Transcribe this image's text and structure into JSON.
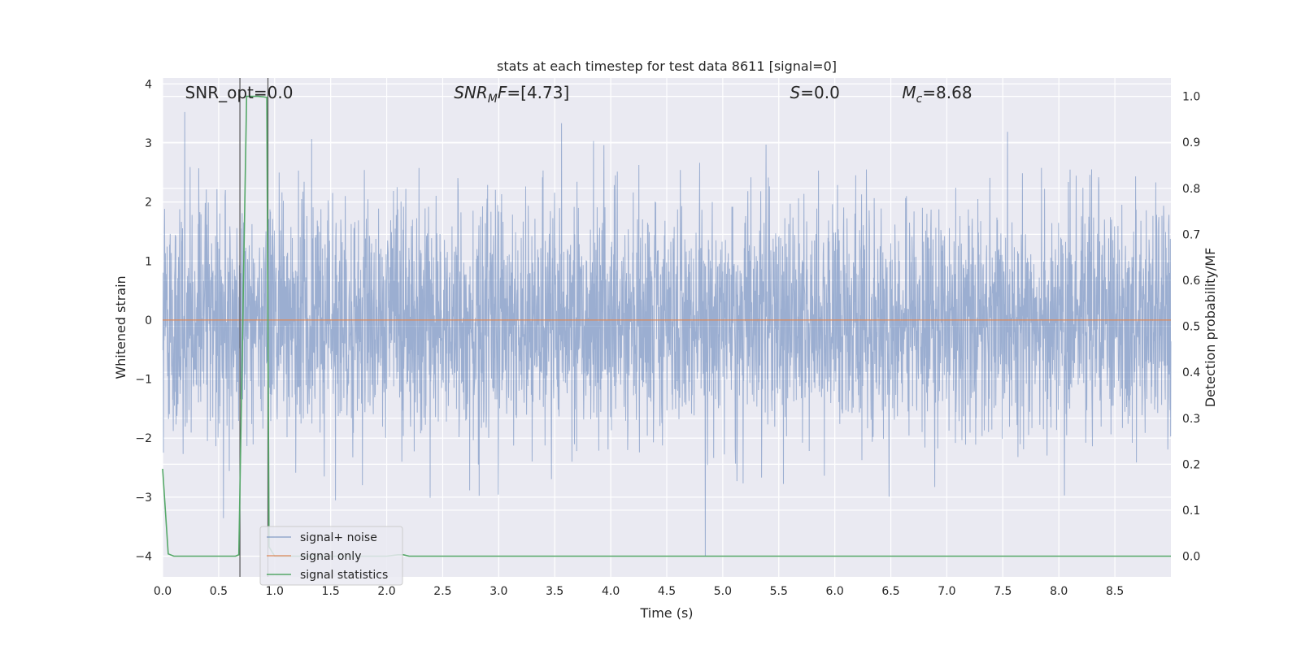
{
  "chart_data": {
    "type": "line",
    "title": "stats at each timestep for test data 8611 [signal=0]",
    "xlabel": "Time (s)",
    "ylabel_left": "Whitened strain",
    "ylabel_right": "Detection probability/MF",
    "xlim": [
      0.0,
      9.0
    ],
    "ylim_left": [
      -4.35,
      4.1
    ],
    "ylim_right": [
      -0.045,
      1.04
    ],
    "x_ticks": [
      0.0,
      0.5,
      1.0,
      1.5,
      2.0,
      2.5,
      3.0,
      3.5,
      4.0,
      4.5,
      5.0,
      5.5,
      6.0,
      6.5,
      7.0,
      7.5,
      8.0,
      8.5
    ],
    "x_tick_labels": [
      "0.0",
      "0.5",
      "1.0",
      "1.5",
      "2.0",
      "2.5",
      "3.0",
      "3.5",
      "4.0",
      "4.5",
      "5.0",
      "5.5",
      "6.0",
      "6.5",
      "7.0",
      "7.5",
      "8.0",
      "8.5"
    ],
    "y_left_ticks": [
      4,
      3,
      2,
      1,
      0,
      -1,
      -2,
      -3,
      -4
    ],
    "y_left_tick_labels": [
      "4",
      "3",
      "2",
      "1",
      "0",
      "−1",
      "−2",
      "−3",
      "−4"
    ],
    "y_right_ticks": [
      1.0,
      0.9,
      0.8,
      0.7,
      0.6,
      0.5,
      0.4,
      0.3,
      0.2,
      0.1,
      0.0
    ],
    "y_right_tick_labels": [
      "1.0",
      "0.9",
      "0.8",
      "0.7",
      "0.6",
      "0.5",
      "0.4",
      "0.3",
      "0.2",
      "0.1",
      "0.0"
    ],
    "grid": true,
    "legend_position": "lower-left",
    "series": [
      {
        "name": "signal+ noise",
        "axis": "left",
        "color": "#4c72b0",
        "description_values": "whitened noise, approximately Gaussian, amplitude mostly within [-2.5, 2.5], extremes ~3.8 and ~-4.0",
        "noise_std": 1.0,
        "range": [
          -4.0,
          3.8
        ]
      },
      {
        "name": "signal only",
        "axis": "left",
        "color": "#dd8452",
        "x": [
          0.0,
          9.0
        ],
        "y": [
          0.0,
          0.0
        ]
      },
      {
        "name": "signal statistics",
        "axis": "right",
        "color": "#55a868",
        "x": [
          0.0,
          0.05,
          0.1,
          0.2,
          0.3,
          0.4,
          0.5,
          0.6,
          0.65,
          0.68,
          0.75,
          0.8,
          0.85,
          0.9,
          0.93,
          0.95,
          1.0,
          1.1,
          1.2,
          1.5,
          2.0,
          2.1,
          2.15,
          2.2,
          3.0,
          4.0,
          5.0,
          6.0,
          7.0,
          8.0,
          8.5,
          9.0
        ],
        "y": [
          0.19,
          0.005,
          0.0,
          0.0,
          0.0,
          0.0,
          0.0,
          0.0,
          0.0,
          0.003,
          1.0,
          1.0,
          1.0,
          0.999,
          0.998,
          0.02,
          0.0,
          0.0,
          0.0,
          0.0,
          0.0,
          0.003,
          0.003,
          0.0,
          0.0,
          0.0,
          0.0,
          0.0,
          0.0,
          0.0,
          0.0,
          0.0
        ]
      }
    ],
    "vertical_markers": [
      {
        "x": 0.69,
        "color": "#555555"
      },
      {
        "x": 0.94,
        "color": "#555555"
      }
    ],
    "annotations": [
      {
        "text": "SNR_opt=0.0",
        "x": 0.2
      },
      {
        "text": "SNR_MF=[4.73]",
        "base": "SNR",
        "sub": "M",
        "rest": "F=[4.73]",
        "x": 2.6
      },
      {
        "text": "S=0.0",
        "base": "S",
        "rest": "=0.0",
        "x": 5.6
      },
      {
        "text": "M_c=8.68",
        "base": "M",
        "sub": "c",
        "rest": "=8.68",
        "x": 6.6
      }
    ]
  }
}
